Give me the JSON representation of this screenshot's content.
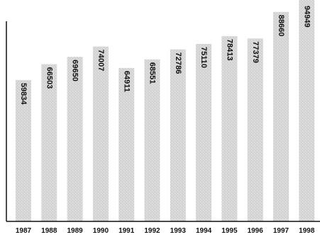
{
  "chart_data": {
    "type": "bar",
    "categories": [
      "1987",
      "1988",
      "1989",
      "1990",
      "1991",
      "1992",
      "1993",
      "1994",
      "1995",
      "1996",
      "1997",
      "1998"
    ],
    "values": [
      59834,
      66503,
      69650,
      74007,
      64911,
      68551,
      72786,
      75110,
      78413,
      77379,
      88660,
      94949
    ],
    "data_labels": [
      "59834",
      "66503",
      "69650",
      "74007",
      "64911",
      "68551",
      "72786",
      "75110",
      "78413",
      "77379",
      "88660",
      "94949"
    ],
    "title": "",
    "xlabel": "",
    "ylabel": "",
    "ylim": [
      0,
      100000
    ],
    "grid": false,
    "legend": "none"
  },
  "colors": {
    "bar_fill": "#d6d6d6",
    "bar_texture": "#bdbdbd",
    "axis": "#111111",
    "text": "#111111"
  }
}
